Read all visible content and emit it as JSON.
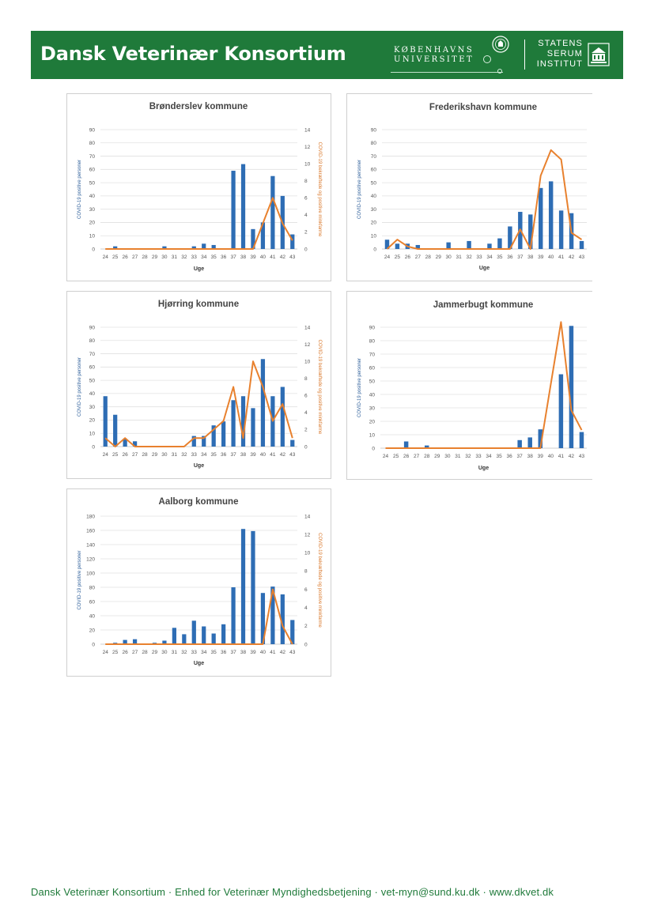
{
  "header": {
    "title": "Dansk Veterinær Konsortium",
    "ku_line1": "KØBENHAVNS",
    "ku_line2": "UNIVERSITET",
    "ssi_line1": "STATENS",
    "ssi_line2": "SERUM",
    "ssi_line3": "INSTITUT"
  },
  "colors": {
    "brand_green": "#1f7a3a",
    "bar_blue": "#2e6db4",
    "line_orange": "#e8812e"
  },
  "footer": {
    "text": "Dansk Veterinær Konsortium · Enhed for Veterinær Myndighedsbetjening · vet-myn@sund.ku.dk · www.dkvet.dk"
  },
  "chart_data": [
    {
      "type": "bar",
      "title": "Brønderslev kommune",
      "xlabel": "Uge",
      "ylabel": "COVID-19 positive personer",
      "y2label": "COVID-19 bekræftede og positive minkfarme",
      "categories": [
        "24",
        "25",
        "26",
        "27",
        "28",
        "29",
        "30",
        "31",
        "32",
        "33",
        "34",
        "35",
        "36",
        "37",
        "38",
        "39",
        "40",
        "41",
        "42",
        "43"
      ],
      "ylim": [
        0,
        90
      ],
      "yticks": [
        0,
        10,
        20,
        30,
        40,
        50,
        60,
        70,
        80,
        90
      ],
      "y2lim": [
        0,
        14
      ],
      "y2ticks": [
        0,
        2,
        4,
        6,
        8,
        10,
        12,
        14
      ],
      "bars": [
        0,
        2,
        0,
        0,
        0,
        0,
        2,
        0,
        0,
        2,
        4,
        3,
        0,
        59,
        64,
        15,
        20,
        55,
        40,
        11
      ],
      "line": [
        0,
        0,
        0,
        0,
        0,
        0,
        0,
        0,
        0,
        0,
        0,
        0,
        0,
        0,
        0,
        0,
        3,
        6,
        3,
        1
      ]
    },
    {
      "type": "bar",
      "title": "Frederikshavn kommune",
      "xlabel": "Uge",
      "ylabel": "COVID-19 positive personer",
      "y2label": "",
      "categories": [
        "24",
        "25",
        "26",
        "27",
        "28",
        "29",
        "30",
        "31",
        "32",
        "33",
        "34",
        "35",
        "36",
        "37",
        "38",
        "39",
        "40",
        "41",
        "42",
        "43"
      ],
      "ylim": [
        0,
        90
      ],
      "yticks": [
        0,
        10,
        20,
        30,
        40,
        50,
        60,
        70,
        80,
        90
      ],
      "y2lim": [
        0,
        14
      ],
      "y2ticks": [],
      "bars": [
        7,
        4,
        4,
        3,
        0,
        0,
        5,
        0,
        6,
        0,
        4,
        8,
        17,
        28,
        26,
        46,
        51,
        29,
        27,
        6
      ],
      "line": [
        0,
        1.1,
        0.3,
        0,
        0,
        0,
        0,
        0,
        0,
        0,
        0,
        0,
        0,
        2.3,
        0,
        8.6,
        11.6,
        10.5,
        1.9,
        1.1
      ]
    },
    {
      "type": "bar",
      "title": "Hjørring kommune",
      "xlabel": "Uge",
      "ylabel": "COVID-19 positive personer",
      "y2label": "COVID-19 bekræftede og positive minkfarme",
      "categories": [
        "24",
        "25",
        "26",
        "27",
        "28",
        "29",
        "30",
        "31",
        "32",
        "33",
        "34",
        "35",
        "36",
        "37",
        "38",
        "39",
        "40",
        "41",
        "42",
        "43"
      ],
      "ylim": [
        0,
        90
      ],
      "yticks": [
        0,
        10,
        20,
        30,
        40,
        50,
        60,
        70,
        80,
        90
      ],
      "y2lim": [
        0,
        14
      ],
      "y2ticks": [
        0,
        2,
        4,
        6,
        8,
        10,
        12,
        14
      ],
      "bars": [
        38,
        24,
        6,
        4,
        0,
        0,
        0,
        0,
        0,
        8,
        8,
        16,
        19,
        35,
        38,
        29,
        66,
        38,
        45,
        5
      ],
      "line": [
        1,
        0,
        1,
        0,
        0,
        0,
        0,
        0,
        0,
        1,
        1,
        2,
        3,
        7,
        1,
        10,
        7,
        3,
        5,
        1
      ]
    },
    {
      "type": "bar",
      "title": "Jammerbugt kommune",
      "xlabel": "Uge",
      "ylabel": "COVID-19 positive personer",
      "y2label": "",
      "categories": [
        "24",
        "25",
        "26",
        "27",
        "28",
        "29",
        "30",
        "31",
        "32",
        "33",
        "34",
        "35",
        "36",
        "37",
        "38",
        "39",
        "40",
        "41",
        "42",
        "43"
      ],
      "ylim": [
        0,
        90
      ],
      "yticks": [
        0,
        10,
        20,
        30,
        40,
        50,
        60,
        70,
        80,
        90
      ],
      "y2lim": [
        0,
        14
      ],
      "y2ticks": [],
      "bars": [
        0,
        0,
        5,
        0,
        2,
        0,
        0,
        0,
        0,
        0,
        0,
        0,
        0,
        6,
        8,
        14,
        0,
        55,
        91,
        12
      ],
      "line": [
        0,
        0,
        0,
        0,
        0,
        0,
        0,
        0,
        0,
        0,
        0,
        0,
        0,
        0,
        0,
        0,
        7.3,
        14.6,
        4.4,
        2.1
      ]
    },
    {
      "type": "bar",
      "title": "Aalborg kommune",
      "xlabel": "Uge",
      "ylabel": "COVID-19 positive personer",
      "y2label": "COVID-19 bekræftede og positive minkfarme",
      "categories": [
        "24",
        "25",
        "26",
        "27",
        "28",
        "29",
        "30",
        "31",
        "32",
        "33",
        "34",
        "35",
        "36",
        "37",
        "38",
        "39",
        "40",
        "41",
        "42",
        "43"
      ],
      "ylim": [
        0,
        180
      ],
      "yticks": [
        0,
        20,
        40,
        60,
        80,
        100,
        120,
        140,
        160,
        180
      ],
      "y2lim": [
        0,
        14
      ],
      "y2ticks": [
        0,
        2,
        4,
        6,
        8,
        10,
        12,
        14
      ],
      "bars": [
        0,
        2,
        6,
        7,
        0,
        2,
        5,
        23,
        14,
        33,
        25,
        15,
        28,
        80,
        162,
        159,
        72,
        81,
        70,
        34
      ],
      "line": [
        0,
        0,
        0,
        0,
        0,
        0,
        0,
        0,
        0,
        0,
        0,
        0,
        0,
        0,
        0,
        0,
        0,
        6,
        2,
        0
      ]
    }
  ]
}
